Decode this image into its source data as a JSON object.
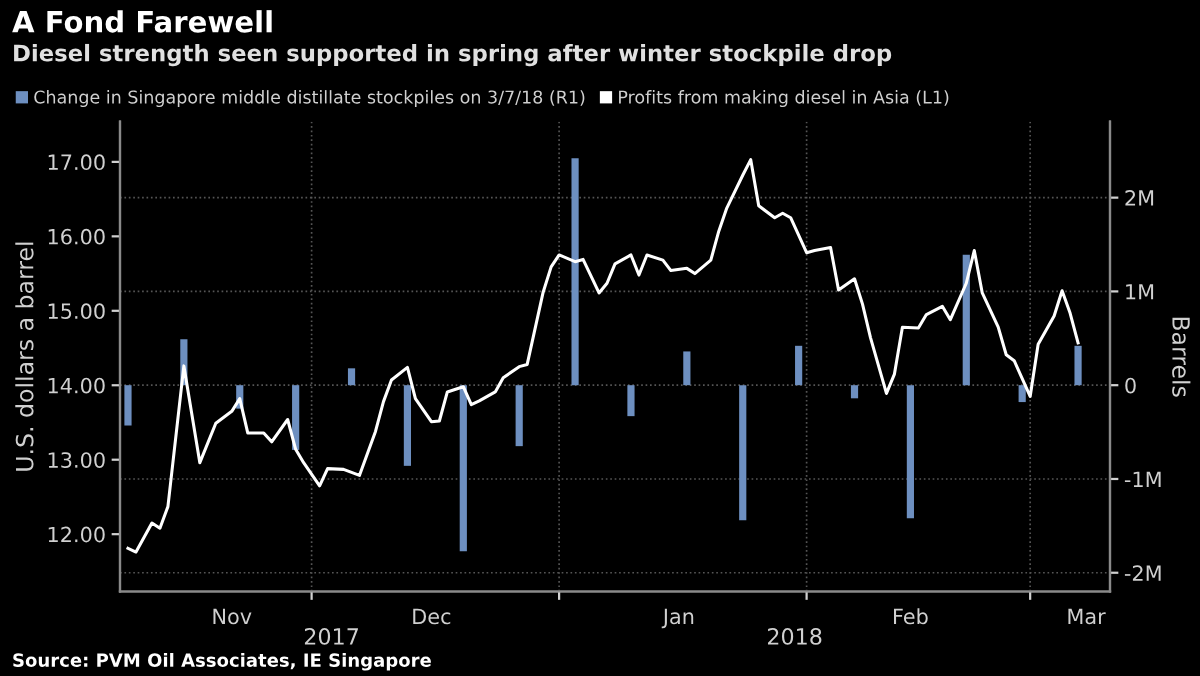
{
  "chart_data": {
    "type": "line",
    "title": "A Fond Farewell",
    "subtitle": "Diesel strength seen supported in spring after winter stockpile drop",
    "ylabel": "U.S. dollars a barrel",
    "y2label": "Barrels",
    "xlim": [
      "2017-11-07",
      "2018-03-11"
    ],
    "xticks": [
      {
        "value": "2017-11-21",
        "label": "Nov"
      },
      {
        "value": "2017-12-01",
        "label": null
      },
      {
        "value": "2017-12-16",
        "label": "Dec"
      },
      {
        "value": "2018-01-01",
        "label": null
      },
      {
        "value": "2018-01-16",
        "label": "Jan"
      },
      {
        "value": "2018-02-01",
        "label": null
      },
      {
        "value": "2018-02-14",
        "label": "Feb"
      },
      {
        "value": "2018-03-01",
        "label": null
      },
      {
        "value": "2018-03-08",
        "label": "Mar"
      }
    ],
    "ylim": [
      11.23,
      17.54
    ],
    "yticks": [
      {
        "value": 12,
        "label": "12.00"
      },
      {
        "value": 13,
        "label": "13.00"
      },
      {
        "value": 14,
        "label": "14.00"
      },
      {
        "value": 15,
        "label": "15.00"
      },
      {
        "value": 16,
        "label": "16.00"
      },
      {
        "value": 17,
        "label": "17.00"
      }
    ],
    "y2lim": [
      -2200000,
      2810000
    ],
    "y2ticks": [
      {
        "value": -2000000,
        "label": "-2M"
      },
      {
        "value": -1000000,
        "label": "-1M"
      },
      0,
      {
        "value": 1000000,
        "label": "1M"
      },
      {
        "value": 2000000,
        "label": "2M"
      }
    ],
    "grid": true,
    "legend": "top left",
    "annotations": [
      "2017",
      "2018",
      "Source: PVM Oil Associates, IE Singapore"
    ],
    "series": [
      {
        "name": "Change in Singapore middle distillate stockpiles on 3/7/18 (R1)",
        "type": "bar",
        "axis": "y2",
        "color": "#6d8fc0",
        "x": [
          "2017-11-08",
          "2017-11-15",
          "2017-11-22",
          "2017-11-29",
          "2017-12-06",
          "2017-12-13",
          "2017-12-20",
          "2017-12-27",
          "2018-01-03",
          "2018-01-10",
          "2018-01-17",
          "2018-01-24",
          "2018-01-31",
          "2018-02-07",
          "2018-02-14",
          "2018-02-21",
          "2018-02-28",
          "2018-03-07"
        ],
        "values": [
          -430000,
          490000,
          -250000,
          -690000,
          180000,
          -860000,
          -1770000,
          -650000,
          2420000,
          -330000,
          360000,
          -1440000,
          420000,
          -140000,
          -1420000,
          1390000,
          -180000,
          420000
        ]
      },
      {
        "name": "Profits from making diesel in Asia (L1)",
        "axis": "y",
        "color": "#ffffff",
        "x": [
          "2017-11-08",
          "2017-11-09",
          "2017-11-11",
          "2017-11-12",
          "2017-11-13",
          "2017-11-15",
          "2017-11-17",
          "2017-11-19",
          "2017-11-21",
          "2017-11-22",
          "2017-11-23",
          "2017-11-25",
          "2017-11-26",
          "2017-11-28",
          "2017-11-29",
          "2017-11-30",
          "2017-12-02",
          "2017-12-03",
          "2017-12-05",
          "2017-12-07",
          "2017-12-09",
          "2017-12-10",
          "2017-12-11",
          "2017-12-13",
          "2017-12-14",
          "2017-12-16",
          "2017-12-17",
          "2017-12-18",
          "2017-12-20",
          "2017-12-21",
          "2017-12-22",
          "2017-12-24",
          "2017-12-25",
          "2017-12-27",
          "2017-12-28",
          "2017-12-30",
          "2017-12-31",
          "2018-01-01",
          "2018-01-03",
          "2018-01-04",
          "2018-01-06",
          "2018-01-07",
          "2018-01-08",
          "2018-01-10",
          "2018-01-11",
          "2018-01-12",
          "2018-01-14",
          "2018-01-15",
          "2018-01-17",
          "2018-01-18",
          "2018-01-20",
          "2018-01-21",
          "2018-01-22",
          "2018-01-24",
          "2018-01-25",
          "2018-01-26",
          "2018-01-28",
          "2018-01-29",
          "2018-01-30",
          "2018-02-01",
          "2018-02-02",
          "2018-02-04",
          "2018-02-05",
          "2018-02-07",
          "2018-02-08",
          "2018-02-09",
          "2018-02-11",
          "2018-02-12",
          "2018-02-13",
          "2018-02-15",
          "2018-02-16",
          "2018-02-18",
          "2018-02-19",
          "2018-02-21",
          "2018-02-22",
          "2018-02-23",
          "2018-02-25",
          "2018-02-26",
          "2018-02-27",
          "2018-03-01",
          "2018-03-02",
          "2018-03-04",
          "2018-03-05",
          "2018-03-06",
          "2018-03-07"
        ],
        "values": [
          11.81,
          11.76,
          12.15,
          12.08,
          12.37,
          14.26,
          12.96,
          13.49,
          13.65,
          13.82,
          13.36,
          13.36,
          13.24,
          13.54,
          13.14,
          12.96,
          12.65,
          12.88,
          12.87,
          12.79,
          13.38,
          13.78,
          14.07,
          14.24,
          13.82,
          13.51,
          13.52,
          13.91,
          13.98,
          13.74,
          13.79,
          13.91,
          14.1,
          14.25,
          14.28,
          15.25,
          15.59,
          15.75,
          15.66,
          15.69,
          15.24,
          15.37,
          15.63,
          15.75,
          15.48,
          15.75,
          15.68,
          15.54,
          15.57,
          15.5,
          15.68,
          16.07,
          16.38,
          16.82,
          17.03,
          16.41,
          16.25,
          16.31,
          16.25,
          15.78,
          15.81,
          15.85,
          15.28,
          15.43,
          15.09,
          14.64,
          13.89,
          14.15,
          14.78,
          14.77,
          14.95,
          15.06,
          14.88,
          15.37,
          15.81,
          15.24,
          14.78,
          14.41,
          14.33,
          13.85,
          14.55,
          14.93,
          15.27,
          14.97,
          14.57
        ]
      }
    ]
  }
}
